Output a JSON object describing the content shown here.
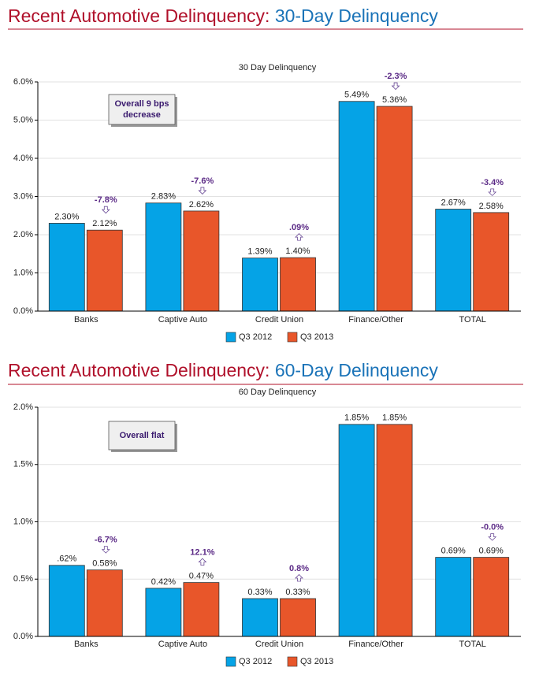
{
  "chart_data": [
    {
      "type": "bar",
      "heading_prefix": "Recent Automotive Delinquency:",
      "heading": "30-Day Delinquency",
      "title": "30 Day Delinquency",
      "categories": [
        "Banks",
        "Captive Auto",
        "Credit Union",
        "Finance/Other",
        "TOTAL"
      ],
      "series": [
        {
          "name": "Q3 2012",
          "color": "#05a3e6",
          "values": [
            2.3,
            2.83,
            1.39,
            5.49,
            2.67
          ],
          "value_labels": [
            "2.30%",
            "2.83%",
            "1.39%",
            "5.49%",
            "2.67%"
          ]
        },
        {
          "name": "Q3 2013",
          "color": "#e8562a",
          "values": [
            2.12,
            2.62,
            1.4,
            5.36,
            2.58
          ],
          "value_labels": [
            "2.12%",
            "2.62%",
            "1.40%",
            "5.36%",
            "2.58%"
          ]
        }
      ],
      "changes": [
        "-7.8%",
        "-7.6%",
        ".09%",
        "-2.3%",
        "-3.4%"
      ],
      "annotation": [
        "Overall 9 bps",
        "decrease"
      ],
      "ylim": [
        0,
        6
      ],
      "yticks": [
        {
          "value": 0,
          "label": "0.0%"
        },
        {
          "value": 1,
          "label": "1.0%"
        },
        {
          "value": 2,
          "label": "2.0%"
        },
        {
          "value": 3,
          "label": "3.0%"
        },
        {
          "value": 4,
          "label": "4.0%"
        },
        {
          "value": 5,
          "label": "5.0%"
        },
        {
          "value": 6,
          "label": "6.0%"
        }
      ],
      "grid": true,
      "legend": "bottom"
    },
    {
      "type": "bar",
      "heading_prefix": "Recent Automotive Delinquency:",
      "heading": "60-Day Delinquency",
      "title": "60 Day Delinquency",
      "categories": [
        "Banks",
        "Captive Auto",
        "Credit Union",
        "Finance/Other",
        "TOTAL"
      ],
      "series": [
        {
          "name": "Q3 2012",
          "color": "#05a3e6",
          "values": [
            0.62,
            0.42,
            0.33,
            1.85,
            0.69
          ],
          "value_labels": [
            ".62%",
            "0.42%",
            "0.33%",
            "1.85%",
            "0.69%"
          ]
        },
        {
          "name": "Q3 2013",
          "color": "#e8562a",
          "values": [
            0.58,
            0.47,
            0.33,
            1.85,
            0.69
          ],
          "value_labels": [
            "0.58%",
            "0.47%",
            "0.33%",
            "1.85%",
            "0.69%"
          ]
        }
      ],
      "changes": [
        "-6.7%",
        "12.1%",
        "0.8%",
        null,
        "-0.0%"
      ],
      "annotation": [
        "Overall flat"
      ],
      "ylim": [
        0,
        2
      ],
      "yticks": [
        {
          "value": 0,
          "label": "0.0%"
        },
        {
          "value": 0.5,
          "label": "0.5%"
        },
        {
          "value": 1,
          "label": "1.0%"
        },
        {
          "value": 1.5,
          "label": "1.5%"
        },
        {
          "value": 2,
          "label": "2.0%"
        }
      ],
      "grid": true,
      "legend": "bottom"
    }
  ]
}
